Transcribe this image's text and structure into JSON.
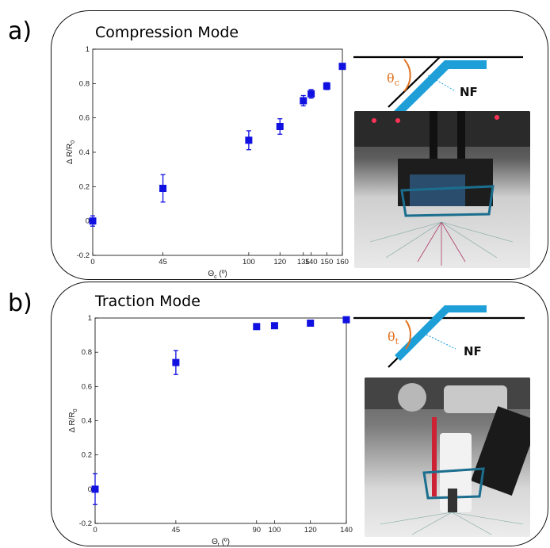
{
  "panel_a": {
    "label": "a)",
    "title": "Compression Mode",
    "schematic": {
      "theta_symbol": "θ",
      "theta_sub": "c",
      "nf_label": "NF"
    }
  },
  "panel_b": {
    "label": "b)",
    "title": "Traction Mode",
    "schematic": {
      "theta_symbol": "θ",
      "theta_sub": "t",
      "nf_label": "NF"
    }
  },
  "colors": {
    "marker": "#1010e0",
    "accent": "#e0711f",
    "schematic_strip": "#1e9fd8"
  },
  "chart_data": [
    {
      "type": "scatter",
      "title": "Compression Mode",
      "xlabel_main": "Θ",
      "xlabel_sub": "c",
      "xlabel_unit": " (º)",
      "ylabel_main": "Δ R/R",
      "ylabel_sub": "0",
      "xlim": [
        0,
        160
      ],
      "ylim": [
        -0.2,
        1
      ],
      "x_ticks": [
        0,
        45,
        100,
        120,
        135,
        140,
        150,
        160
      ],
      "x_tick_labels": [
        "0",
        "45",
        "100",
        "120",
        "135",
        "140",
        "150",
        "160"
      ],
      "y_ticks": [
        -0.2,
        0,
        0.2,
        0.4,
        0.6,
        0.8,
        1
      ],
      "y_tick_labels": [
        "-0.2",
        "0",
        "0.2",
        "0.4",
        "0.6",
        "0.8",
        "1"
      ],
      "x": [
        0,
        45,
        100,
        120,
        135,
        140,
        150,
        160
      ],
      "y": [
        0.0,
        0.19,
        0.47,
        0.55,
        0.7,
        0.74,
        0.785,
        0.9
      ],
      "err": [
        0.03,
        0.08,
        0.055,
        0.045,
        0.03,
        0.025,
        0.02,
        0.0
      ]
    },
    {
      "type": "scatter",
      "title": "Traction Mode",
      "xlabel_main": "Θ",
      "xlabel_sub": "t",
      "xlabel_unit": " (º)",
      "ylabel_main": "Δ R/R",
      "ylabel_sub": "0",
      "xlim": [
        0,
        140
      ],
      "ylim": [
        -0.2,
        1
      ],
      "x_ticks": [
        0,
        45,
        90,
        100,
        120,
        140
      ],
      "x_tick_labels": [
        "0",
        "45",
        "90",
        "100",
        "120",
        "140"
      ],
      "y_ticks": [
        -0.2,
        0,
        0.2,
        0.4,
        0.6,
        0.8,
        1
      ],
      "y_tick_labels": [
        "-0.2",
        "0",
        "0.2",
        "0.4",
        "0.6",
        "0.8",
        "1"
      ],
      "x": [
        0,
        45,
        90,
        100,
        120,
        140
      ],
      "y": [
        0.0,
        0.74,
        0.95,
        0.955,
        0.97,
        0.99
      ],
      "err": [
        0.09,
        0.07,
        0.0,
        0.0,
        0.0,
        0.0
      ]
    }
  ]
}
